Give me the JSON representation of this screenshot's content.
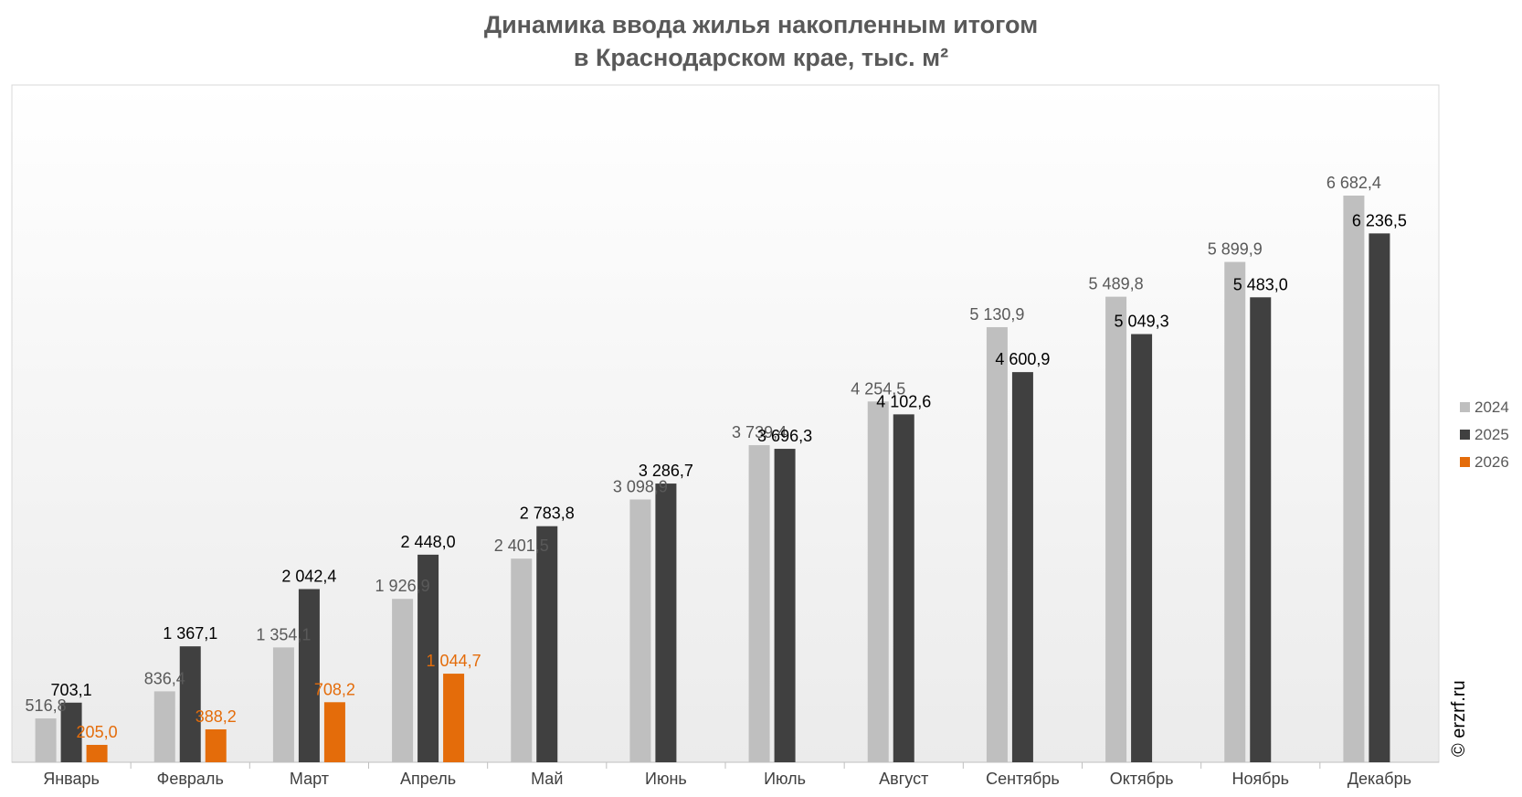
{
  "title_line1": "Динамика ввода жилья накопленным итогом",
  "title_line2": "в Краснодарском крае, тыс. м²",
  "copyright": "© erzrf.ru",
  "chart_data": {
    "type": "bar",
    "title": "Динамика ввода жилья накопленным итогом в Краснодарском крае, тыс. м²",
    "categories": [
      "Январь",
      "Февраль",
      "Март",
      "Апрель",
      "Май",
      "Июнь",
      "Июль",
      "Август",
      "Сентябрь",
      "Октябрь",
      "Ноябрь",
      "Декабрь"
    ],
    "series": [
      {
        "name": "2024",
        "color": "#bfbfbf",
        "label_color": "#595959",
        "values": [
          516.8,
          836.4,
          1354.1,
          1926.9,
          2401.5,
          3098.9,
          3739.4,
          4254.5,
          5130.9,
          5489.8,
          5899.9,
          6682.4
        ],
        "labels": [
          "516,8",
          "836,4",
          "1 354,1",
          "1 926,9",
          "2 401,5",
          "3 098,9",
          "3 739,4",
          "4 254,5",
          "5 130,9",
          "5 489,8",
          "5 899,9",
          "6 682,4"
        ]
      },
      {
        "name": "2025",
        "color": "#404040",
        "label_color": "#000000",
        "values": [
          703.1,
          1367.1,
          2042.4,
          2448.0,
          2783.8,
          3286.7,
          3696.3,
          4102.6,
          4600.9,
          5049.3,
          5483.0,
          6236.5
        ],
        "labels": [
          "703,1",
          "1 367,1",
          "2 042,4",
          "2 448,0",
          "2 783,8",
          "3 286,7",
          "3 696,3",
          "4 102,6",
          "4 600,9",
          "5 049,3",
          "5 483,0",
          "6 236,5"
        ]
      },
      {
        "name": "2026",
        "color": "#e46c0a",
        "label_color": "#e46c0a",
        "values": [
          205.0,
          388.2,
          708.2,
          1044.7,
          null,
          null,
          null,
          null,
          null,
          null,
          null,
          null
        ],
        "labels": [
          "205,0",
          "388,2",
          "708,2",
          "1 044,7",
          null,
          null,
          null,
          null,
          null,
          null,
          null,
          null
        ]
      }
    ],
    "ylim": [
      0,
      7000
    ],
    "grid": false,
    "legend": "right"
  }
}
